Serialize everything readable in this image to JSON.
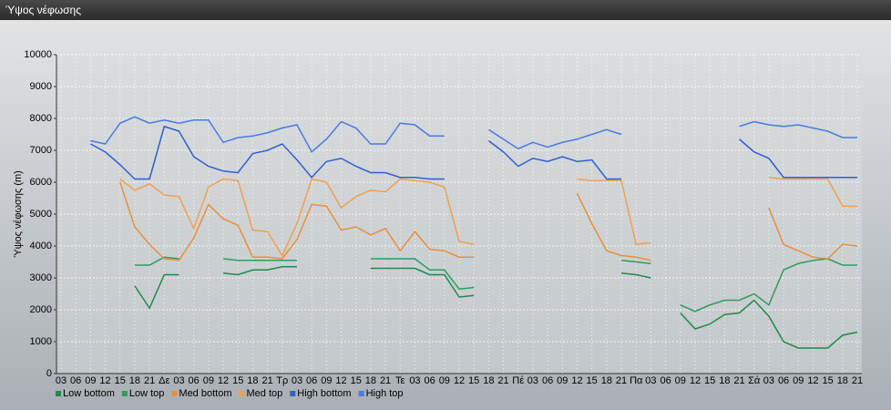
{
  "chart_data": {
    "type": "line",
    "title": "Ύψος νέφωσης",
    "y_label": "Ύψος νέφωσης (m)",
    "categories": [
      "03",
      "06",
      "09",
      "12",
      "15",
      "18",
      "21",
      "Δε",
      "03",
      "06",
      "09",
      "12",
      "15",
      "18",
      "21",
      "Τρ",
      "03",
      "06",
      "09",
      "12",
      "15",
      "18",
      "21",
      "Τε",
      "03",
      "06",
      "09",
      "12",
      "15",
      "18",
      "21",
      "Πέ",
      "03",
      "06",
      "09",
      "12",
      "15",
      "18",
      "21",
      "Πα",
      "03",
      "06",
      "09",
      "12",
      "15",
      "18",
      "21",
      "Σά",
      "03",
      "06",
      "09",
      "12",
      "15",
      "18",
      "21"
    ],
    "ylim": [
      0,
      10000
    ],
    "yticks": [
      0,
      1000,
      2000,
      3000,
      4000,
      5000,
      6000,
      7000,
      8000,
      9000,
      10000
    ],
    "grid": true,
    "legend": "bottom",
    "series": [
      {
        "name": "Low bottom",
        "color": "#1f8a4c",
        "values": [
          null,
          null,
          null,
          null,
          null,
          2750,
          2050,
          3100,
          3100,
          null,
          null,
          3150,
          3100,
          3250,
          3250,
          3350,
          3350,
          null,
          null,
          null,
          null,
          3300,
          3300,
          3300,
          3300,
          3100,
          3100,
          2400,
          2450,
          null,
          null,
          null,
          null,
          null,
          null,
          null,
          null,
          null,
          3150,
          3100,
          3000,
          null,
          1900,
          1400,
          1550,
          1850,
          1900,
          2300,
          1800,
          1000,
          800,
          800,
          800,
          1200,
          1300
        ]
      },
      {
        "name": "Low top",
        "color": "#2e9c5e",
        "values": [
          null,
          null,
          null,
          null,
          null,
          3400,
          3400,
          3650,
          3600,
          null,
          null,
          3600,
          3550,
          3550,
          3550,
          3550,
          3550,
          null,
          null,
          null,
          null,
          3600,
          3600,
          3600,
          3600,
          3250,
          3250,
          2650,
          2700,
          null,
          null,
          null,
          null,
          null,
          null,
          null,
          null,
          null,
          3550,
          3500,
          3450,
          null,
          2150,
          1950,
          2150,
          2300,
          2300,
          2500,
          2150,
          3250,
          3450,
          3550,
          3600,
          3400,
          3400
        ]
      },
      {
        "name": "Med bottom",
        "color": "#e8903a",
        "values": [
          null,
          null,
          null,
          null,
          6000,
          4600,
          4050,
          3600,
          3550,
          4250,
          5300,
          4850,
          4650,
          3650,
          3650,
          3600,
          4200,
          5300,
          5250,
          4500,
          4600,
          4350,
          4550,
          3850,
          4450,
          3900,
          3850,
          3650,
          3650,
          null,
          null,
          null,
          null,
          null,
          null,
          5650,
          4700,
          3850,
          3700,
          3650,
          3550,
          null,
          null,
          null,
          null,
          null,
          null,
          null,
          5200,
          4050,
          3850,
          3650,
          3600,
          4050,
          4000
        ]
      },
      {
        "name": "Med top",
        "color": "#f0a050",
        "values": [
          null,
          null,
          null,
          null,
          6100,
          5750,
          5950,
          5600,
          5550,
          4550,
          5850,
          6100,
          6050,
          4500,
          4450,
          3700,
          4700,
          6100,
          6000,
          5200,
          5550,
          5750,
          5700,
          6100,
          6050,
          6000,
          5850,
          4150,
          4050,
          null,
          null,
          null,
          null,
          null,
          null,
          6100,
          6050,
          6050,
          6050,
          4050,
          4100,
          null,
          null,
          null,
          null,
          null,
          null,
          null,
          6150,
          6100,
          6100,
          6100,
          6100,
          5250,
          5250
        ]
      },
      {
        "name": "High bottom",
        "color": "#2f5fd0",
        "values": [
          null,
          null,
          7200,
          6950,
          6550,
          6100,
          6100,
          7750,
          7600,
          6800,
          6500,
          6350,
          6300,
          6900,
          7000,
          7200,
          6700,
          6150,
          6650,
          6750,
          6500,
          6300,
          6300,
          6150,
          6150,
          6100,
          6100,
          null,
          null,
          7300,
          6950,
          6500,
          6750,
          6650,
          6800,
          6650,
          6700,
          6100,
          6100,
          null,
          null,
          null,
          null,
          null,
          null,
          null,
          7350,
          6950,
          6750,
          6150,
          6150,
          6150,
          6150,
          6150,
          6150
        ]
      },
      {
        "name": "High top",
        "color": "#4a7ae0",
        "values": [
          null,
          null,
          7300,
          7200,
          7850,
          8050,
          7850,
          7950,
          7850,
          7950,
          7950,
          7250,
          7400,
          7450,
          7550,
          7700,
          7800,
          6950,
          7350,
          7900,
          7700,
          7200,
          7200,
          7850,
          7800,
          7450,
          7450,
          null,
          null,
          7650,
          7350,
          7050,
          7250,
          7100,
          7250,
          7350,
          7500,
          7650,
          7500,
          null,
          null,
          null,
          null,
          null,
          null,
          null,
          7750,
          7900,
          7800,
          7750,
          7800,
          7700,
          7600,
          7400,
          7400
        ]
      }
    ]
  }
}
